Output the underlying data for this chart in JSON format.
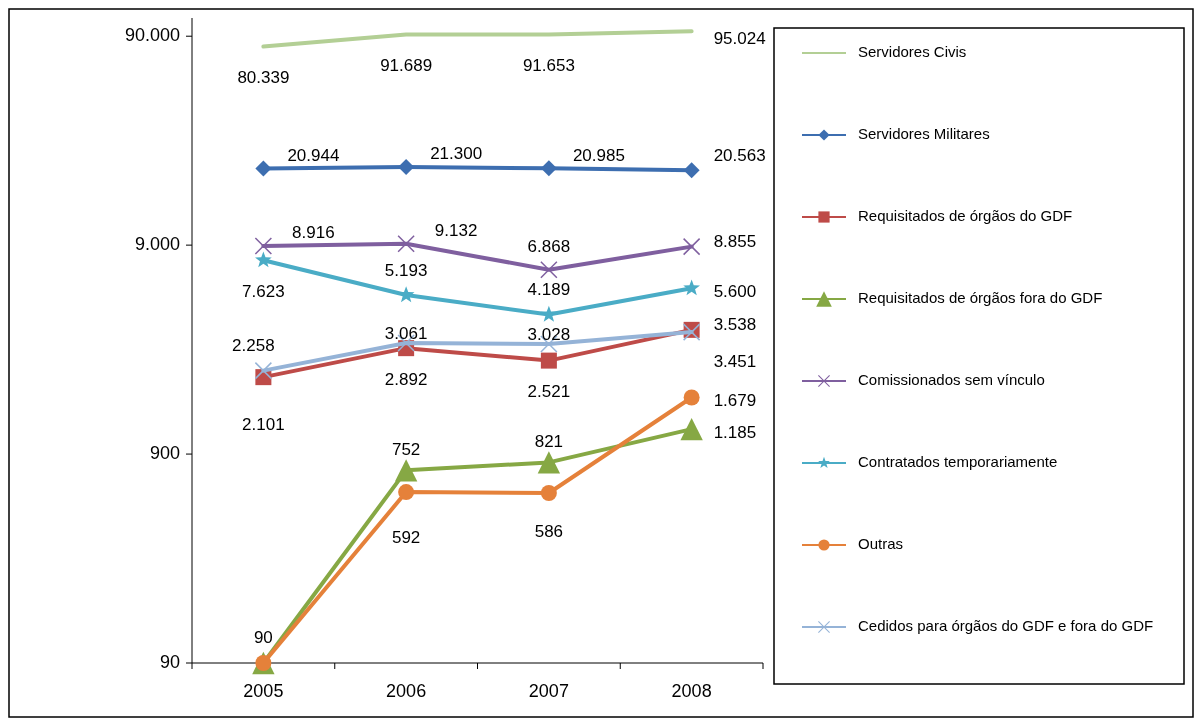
{
  "chart_data": {
    "type": "line",
    "categories": [
      "2005",
      "2006",
      "2007",
      "2008"
    ],
    "log": true,
    "ylim": [
      90,
      110000
    ],
    "yticks": [
      {
        "value": 90,
        "label": "90"
      },
      {
        "value": 900,
        "label": "900"
      },
      {
        "value": 9000,
        "label": "9.000"
      },
      {
        "value": 90000,
        "label": "90.000"
      }
    ],
    "legend": "right",
    "grid": false,
    "series": [
      {
        "name": "Servidores Civis",
        "color": "#b3cf95",
        "marker": "none",
        "values": [
          80339,
          91689,
          91653,
          95024
        ],
        "value_labels": [
          "80.339",
          "91.689",
          "91.653",
          "95.024"
        ]
      },
      {
        "name": "Servidores Militares",
        "color": "#3d6eb0",
        "marker": "diamond",
        "values": [
          20944,
          21300,
          20985,
          20563
        ],
        "value_labels": [
          "20.944",
          "21.300",
          "20.985",
          "20.563"
        ]
      },
      {
        "name": "Requisitados de órgãos do GDF",
        "color": "#be4b48",
        "marker": "square",
        "values": [
          2101,
          2892,
          2521,
          3538
        ],
        "value_labels": [
          "2.101",
          "2.892",
          "2.521",
          "3.538"
        ]
      },
      {
        "name": "Requisitados de órgãos fora do GDF",
        "color": "#86a844",
        "marker": "triangle",
        "values": [
          90,
          752,
          821,
          1185
        ],
        "value_labels": [
          null,
          "752",
          "821",
          "1.185"
        ]
      },
      {
        "name": "Comissionados sem vínculo",
        "color": "#7f5f9f",
        "marker": "cross",
        "values": [
          8916,
          9132,
          6868,
          8855
        ],
        "value_labels": [
          "8.916",
          "9.132",
          "6.868",
          "8.855"
        ]
      },
      {
        "name": "Contratados temporariamente",
        "color": "#4aacc6",
        "marker": "star",
        "values": [
          7623,
          5193,
          4189,
          5600
        ],
        "value_labels": [
          "7.623",
          "5.193",
          "4.189",
          "5.600"
        ]
      },
      {
        "name": "Outras",
        "color": "#e5813a",
        "marker": "circle",
        "values": [
          90,
          592,
          586,
          1679
        ],
        "value_labels": [
          "90",
          "592",
          "586",
          "1.679"
        ]
      },
      {
        "name": "Cedidos para órgãos do GDF e fora do GDF",
        "color": "#95b3d7",
        "marker": "cross",
        "values": [
          2258,
          3061,
          3028,
          3451
        ],
        "value_labels": [
          "2.258",
          "3.061",
          "3.028",
          "3.451"
        ]
      }
    ]
  }
}
